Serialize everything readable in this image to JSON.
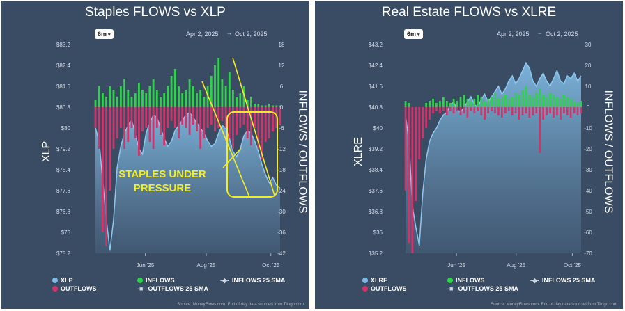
{
  "colors": {
    "panel_bg": "#3a4c63",
    "price_fill": "#7fb8e0",
    "price_line": "#8ec8ee",
    "inflows": "#2fd34a",
    "outflows": "#d2336b",
    "annotation": "#f5ee1f"
  },
  "chart_data": [
    {
      "type": "bar+area",
      "title": "Staples FLOWS vs XLP",
      "range_button": "6m",
      "date_from": "Apr 2, 2025",
      "date_to": "Oct 2, 2025",
      "date_separator": "→",
      "ylabel_left": "XLP",
      "ylabel_right": "INFLOWS / OUTFLOWS",
      "left_ticks": [
        "$83.2",
        "$82.4",
        "$81.6",
        "$80.8",
        "$80",
        "$79.2",
        "$78.4",
        "$77.6",
        "$76.8",
        "$76",
        "$75.2"
      ],
      "left_range": [
        75.2,
        83.2
      ],
      "right_ticks": [
        "18",
        "12",
        "6",
        "0",
        "-6",
        "-12",
        "-18",
        "-24",
        "-30",
        "-36",
        "-42"
      ],
      "right_range": [
        -42,
        18
      ],
      "x_ticks": [
        "Jun '25",
        "Aug '25",
        "Oct '25"
      ],
      "annotation": "STAPLES UNDER PRESSURE",
      "annotation_lines": [
        "STAPLES UNDER",
        "PRESSURE"
      ],
      "legend": {
        "price": "XLP",
        "inflows": "INFLOWS",
        "inflows_sma": "INFLOWS 25 SMA",
        "outflows": "OUTFLOWS",
        "outflows_sma": "OUTFLOWS 25 SMA"
      },
      "source": "Source: MoneyFlows.com. End of day data sourced from Tiingo.com",
      "price_series": [
        80.0,
        79.5,
        78.0,
        76.5,
        75.3,
        76.5,
        78.5,
        79.3,
        79.8,
        80.1,
        80.3,
        79.8,
        79.2,
        79.0,
        79.8,
        80.2,
        80.5,
        80.4,
        80.0,
        79.6,
        79.3,
        79.5,
        79.9,
        80.1,
        80.3,
        80.5,
        80.6,
        80.4,
        80.2,
        80.0,
        79.8,
        79.5,
        79.3,
        79.4,
        79.8,
        80.1,
        80.0,
        79.6,
        79.1,
        78.9,
        79.2,
        79.7,
        79.9,
        79.8,
        79.5,
        79.1,
        78.6,
        78.2,
        77.9,
        78.1,
        77.8,
        77.7
      ],
      "inflows_series": [
        2,
        6,
        4,
        3,
        6,
        5,
        3,
        6,
        8,
        5,
        3,
        4,
        7,
        5,
        4,
        6,
        8,
        5,
        3,
        4,
        6,
        9,
        11,
        6,
        4,
        5,
        8,
        6,
        4,
        5,
        3,
        6,
        9,
        12,
        14,
        8,
        6,
        10,
        5,
        3,
        4,
        6,
        2,
        3,
        1,
        1,
        0.5,
        0.5,
        1,
        0.5,
        0.5,
        0.5
      ],
      "outflows_series": [
        -6,
        -12,
        -36,
        -40,
        -24,
        -12,
        -9,
        -6,
        -12,
        -10,
        -6,
        -9,
        -14,
        -7,
        -6,
        -10,
        -12,
        -6,
        -8,
        -11,
        -6,
        -4,
        -6,
        -9,
        -5,
        -6,
        -8,
        -5,
        -7,
        -12,
        -9,
        -6,
        -5,
        -7,
        -6,
        -4,
        -6,
        -9,
        -12,
        -8,
        -6,
        -5,
        -9,
        -11,
        -6,
        -12,
        -15,
        -10,
        -9,
        -7,
        -6,
        -5
      ]
    },
    {
      "type": "bar+area",
      "title": "Real Estate FLOWS vs XLRE",
      "range_button": "6m",
      "date_from": "Apr 2, 2025",
      "date_to": "Oct 2, 2025",
      "date_separator": "→",
      "ylabel_left": "XLRE",
      "ylabel_right": "INFLOWS / OUTFLOWS",
      "left_ticks": [
        "$43.2",
        "$42.4",
        "$41.6",
        "$40.8",
        "$40",
        "$39.2",
        "$38.4",
        "$37.6",
        "$36.8",
        "$36",
        "$35.2"
      ],
      "left_range": [
        35.2,
        43.2
      ],
      "right_ticks": [
        "30",
        "20",
        "10",
        "0",
        "-10",
        "-20",
        "-30",
        "-40",
        "-50",
        "-60",
        "-70"
      ],
      "right_range": [
        -70,
        30
      ],
      "x_ticks": [
        "Jun '25",
        "Aug '25",
        "Oct '25"
      ],
      "legend": {
        "price": "XLRE",
        "inflows": "INFLOWS",
        "inflows_sma": "INFLOWS 25 SMA",
        "outflows": "OUTFLOWS",
        "outflows_sma": "OUTFLOWS 25 SMA"
      },
      "source": "Source: MoneyFlows.com. End of day data sourced from Tiingo.com",
      "price_series": [
        40.5,
        39.5,
        37.0,
        36.2,
        35.5,
        37.5,
        38.8,
        39.5,
        39.8,
        40.0,
        40.3,
        40.5,
        40.6,
        40.9,
        41.0,
        40.7,
        40.6,
        40.8,
        41.0,
        41.2,
        40.9,
        40.8,
        41.1,
        41.3,
        41.0,
        41.2,
        41.4,
        41.6,
        41.3,
        41.5,
        41.8,
        42.0,
        41.7,
        41.9,
        42.2,
        42.5,
        42.3,
        41.8,
        41.6,
        41.9,
        42.1,
        41.8,
        41.6,
        41.9,
        42.2,
        41.8,
        41.7,
        42.0,
        41.9,
        42.1,
        41.8,
        42.0
      ],
      "inflows_series": [
        3,
        2,
        0,
        0,
        0,
        0,
        2,
        3,
        4,
        2,
        3,
        5,
        3,
        2,
        4,
        3,
        5,
        6,
        4,
        3,
        4,
        6,
        5,
        3,
        4,
        5,
        7,
        4,
        5,
        6,
        4,
        5,
        7,
        6,
        8,
        10,
        6,
        5,
        7,
        9,
        6,
        5,
        7,
        6,
        5,
        4,
        6,
        5,
        4,
        3,
        2,
        3
      ],
      "outflows_series": [
        -40,
        -65,
        -70,
        -45,
        -25,
        -15,
        -10,
        -6,
        -3,
        -2,
        -3,
        -2,
        -4,
        -2,
        -3,
        -2,
        -4,
        -3,
        -5,
        -2,
        -3,
        -2,
        -4,
        -6,
        -3,
        -2,
        -3,
        -4,
        -5,
        -3,
        -2,
        -4,
        -3,
        -6,
        -4,
        -3,
        -5,
        -4,
        -3,
        -22,
        -6,
        -4,
        -3,
        -5,
        -4,
        -6,
        -3,
        -4,
        -5,
        -3,
        -4,
        -3
      ]
    }
  ]
}
